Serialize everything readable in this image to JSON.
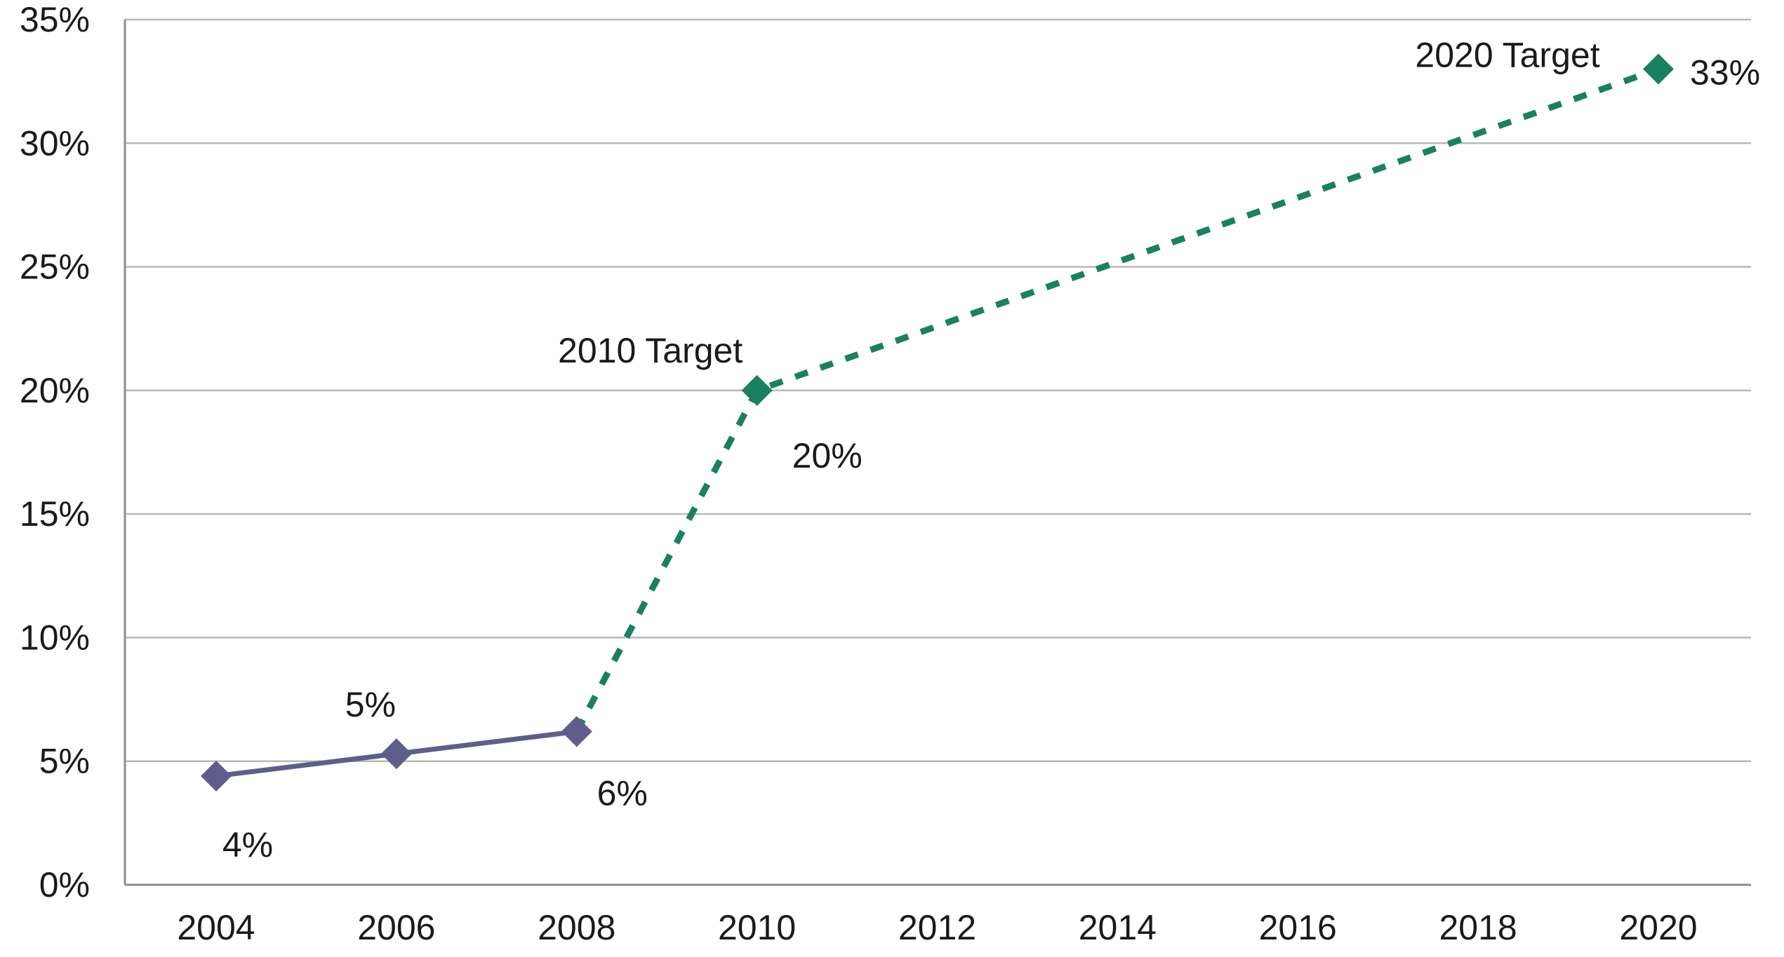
{
  "chart_data": {
    "type": "line",
    "title": "",
    "xlabel": "",
    "ylabel": "",
    "x_ticks": [
      "2004",
      "2006",
      "2008",
      "2010",
      "2012",
      "2014",
      "2016",
      "2018",
      "2020"
    ],
    "y_ticks": [
      "0%",
      "5%",
      "10%",
      "15%",
      "20%",
      "25%",
      "30%",
      "35%"
    ],
    "xlim": [
      2004,
      2020
    ],
    "ylim": [
      0,
      35
    ],
    "grid": true,
    "legend": "none",
    "series": [
      {
        "color": "#5f5e8a",
        "style": "solid",
        "marker": "diamond",
        "points": [
          {
            "x": 2004,
            "y": 4.4,
            "label": "4%"
          },
          {
            "x": 2006,
            "y": 5.3,
            "label": "5%"
          },
          {
            "x": 2008,
            "y": 6.2,
            "label": "6%"
          }
        ]
      },
      {
        "color": "#1a8060",
        "style": "dotted",
        "marker": "diamond",
        "points": [
          {
            "x": 2008,
            "y": 6.2
          },
          {
            "x": 2010,
            "y": 20,
            "label": "20%"
          },
          {
            "x": 2020,
            "y": 33,
            "label": "33%"
          }
        ]
      }
    ],
    "annotations": [
      {
        "x": 2010,
        "y": 20,
        "text": "2010 Target"
      },
      {
        "x": 2020,
        "y": 33,
        "text": "2020 Target"
      }
    ]
  }
}
